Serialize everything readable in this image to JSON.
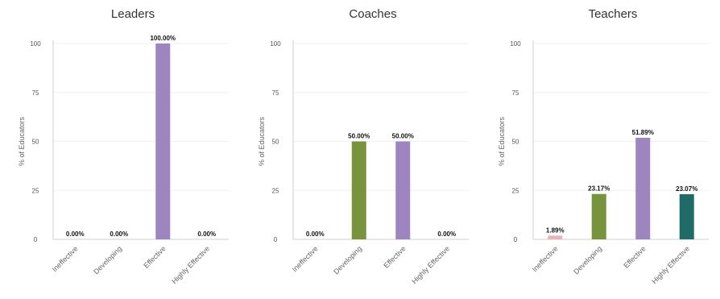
{
  "y_axis_label": "% of Educators",
  "chart_data": [
    {
      "type": "bar",
      "title": "Leaders",
      "ylabel": "% of Educators",
      "ylim": [
        0,
        100
      ],
      "yticks": [
        "0",
        "25",
        "50",
        "75",
        "100"
      ],
      "categories": [
        "Ineffective",
        "Developing",
        "Effective",
        "Highly Effective"
      ],
      "values": [
        0.0,
        0.0,
        100.0,
        0.0
      ],
      "labels": [
        "0.00%",
        "0.00%",
        "100.00%",
        "0.00%"
      ],
      "colors": [
        "#e8b4b8",
        "#77933c",
        "#9e85c0",
        "#1f6b68"
      ],
      "grid": true
    },
    {
      "type": "bar",
      "title": "Coaches",
      "ylabel": "% of Educators",
      "ylim": [
        0,
        100
      ],
      "yticks": [
        "0",
        "25",
        "50",
        "75",
        "100"
      ],
      "categories": [
        "Ineffective",
        "Developing",
        "Effective",
        "Highly Effective"
      ],
      "values": [
        0.0,
        50.0,
        50.0,
        0.0
      ],
      "labels": [
        "0.00%",
        "50.00%",
        "50.00%",
        "0.00%"
      ],
      "colors": [
        "#e8b4b8",
        "#77933c",
        "#9e85c0",
        "#1f6b68"
      ],
      "grid": true
    },
    {
      "type": "bar",
      "title": "Teachers",
      "ylabel": "% of Educators",
      "ylim": [
        0,
        100
      ],
      "yticks": [
        "0",
        "25",
        "50",
        "75",
        "100"
      ],
      "categories": [
        "Ineffective",
        "Developing",
        "Effective",
        "Highly Effective"
      ],
      "values": [
        1.89,
        23.17,
        51.89,
        23.07
      ],
      "labels": [
        "1.89%",
        "23.17%",
        "51.89%",
        "23.07%"
      ],
      "colors": [
        "#e8b4b8",
        "#77933c",
        "#9e85c0",
        "#1f6b68"
      ],
      "grid": true
    }
  ]
}
